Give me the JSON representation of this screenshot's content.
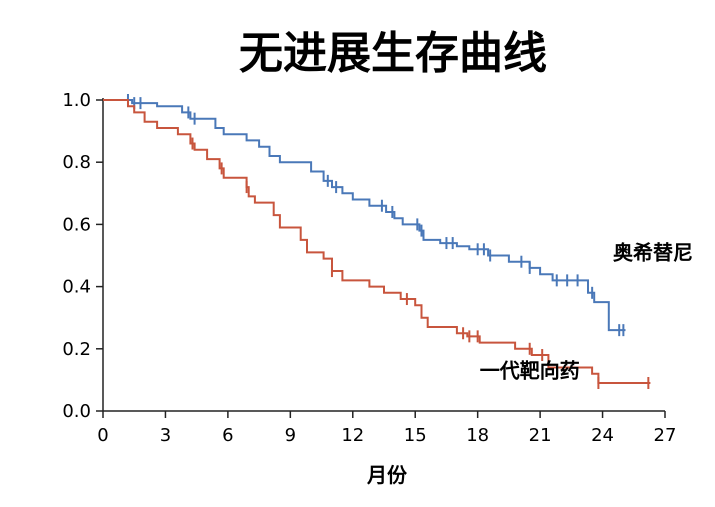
{
  "chart_data": {
    "type": "line",
    "title": "无进展生存曲线",
    "xlabel": "月份",
    "ylabel": "",
    "xlim": [
      0,
      27
    ],
    "ylim": [
      0,
      1
    ],
    "xticks": [
      "0",
      "3",
      "6",
      "9",
      "12",
      "15",
      "18",
      "21",
      "24",
      "27"
    ],
    "yticks": [
      "0.0",
      "0.2",
      "0.4",
      "0.6",
      "0.8",
      "1.0"
    ],
    "grid": false,
    "legend": "inline",
    "series": [
      {
        "name": "奥希替尼",
        "color": "#4a78b8",
        "points": [
          [
            0,
            1.0
          ],
          [
            1.4,
            1.0
          ],
          [
            1.4,
            0.99
          ],
          [
            2.6,
            0.99
          ],
          [
            2.6,
            0.98
          ],
          [
            3.8,
            0.98
          ],
          [
            3.8,
            0.96
          ],
          [
            4.2,
            0.96
          ],
          [
            4.2,
            0.94
          ],
          [
            5.4,
            0.94
          ],
          [
            5.4,
            0.91
          ],
          [
            5.8,
            0.91
          ],
          [
            5.8,
            0.89
          ],
          [
            6.9,
            0.89
          ],
          [
            6.9,
            0.87
          ],
          [
            7.5,
            0.87
          ],
          [
            7.5,
            0.85
          ],
          [
            8,
            0.85
          ],
          [
            8,
            0.82
          ],
          [
            8.5,
            0.82
          ],
          [
            8.5,
            0.8
          ],
          [
            10,
            0.8
          ],
          [
            10,
            0.77
          ],
          [
            10.6,
            0.77
          ],
          [
            10.6,
            0.74
          ],
          [
            11,
            0.74
          ],
          [
            11,
            0.72
          ],
          [
            11.5,
            0.72
          ],
          [
            11.5,
            0.7
          ],
          [
            12,
            0.7
          ],
          [
            12,
            0.68
          ],
          [
            12.8,
            0.68
          ],
          [
            12.8,
            0.66
          ],
          [
            13.6,
            0.66
          ],
          [
            13.6,
            0.64
          ],
          [
            14,
            0.64
          ],
          [
            14,
            0.62
          ],
          [
            14.4,
            0.62
          ],
          [
            14.4,
            0.6
          ],
          [
            15.2,
            0.6
          ],
          [
            15.2,
            0.58
          ],
          [
            15.4,
            0.58
          ],
          [
            15.4,
            0.55
          ],
          [
            16.2,
            0.55
          ],
          [
            16.2,
            0.54
          ],
          [
            17,
            0.54
          ],
          [
            17,
            0.53
          ],
          [
            17.6,
            0.53
          ],
          [
            17.6,
            0.52
          ],
          [
            18.5,
            0.52
          ],
          [
            18.5,
            0.5
          ],
          [
            19.5,
            0.5
          ],
          [
            19.5,
            0.48
          ],
          [
            20.5,
            0.48
          ],
          [
            20.5,
            0.46
          ],
          [
            21,
            0.46
          ],
          [
            21,
            0.44
          ],
          [
            21.6,
            0.44
          ],
          [
            21.6,
            0.42
          ],
          [
            23.3,
            0.42
          ],
          [
            23.3,
            0.38
          ],
          [
            23.6,
            0.38
          ],
          [
            23.6,
            0.35
          ],
          [
            24.3,
            0.35
          ],
          [
            24.3,
            0.26
          ],
          [
            25.1,
            0.26
          ]
        ],
        "censor_x": [
          1.2,
          1.5,
          1.8,
          4.1,
          4.4,
          10.8,
          11.2,
          13.4,
          13.9,
          15.1,
          15.3,
          16.5,
          16.8,
          18,
          18.3,
          18.6,
          20.1,
          20.5,
          21.8,
          22.3,
          22.8,
          23.5,
          24.8,
          25
        ]
      },
      {
        "name": "一代靶向药",
        "color": "#c8553d",
        "points": [
          [
            0,
            1.0
          ],
          [
            1.2,
            1.0
          ],
          [
            1.2,
            0.98
          ],
          [
            1.5,
            0.98
          ],
          [
            1.5,
            0.96
          ],
          [
            2,
            0.96
          ],
          [
            2,
            0.93
          ],
          [
            2.6,
            0.93
          ],
          [
            2.6,
            0.91
          ],
          [
            3.6,
            0.91
          ],
          [
            3.6,
            0.89
          ],
          [
            4.2,
            0.89
          ],
          [
            4.2,
            0.86
          ],
          [
            4.4,
            0.86
          ],
          [
            4.4,
            0.84
          ],
          [
            5,
            0.84
          ],
          [
            5,
            0.81
          ],
          [
            5.6,
            0.81
          ],
          [
            5.6,
            0.78
          ],
          [
            5.8,
            0.78
          ],
          [
            5.8,
            0.75
          ],
          [
            6.9,
            0.75
          ],
          [
            6.9,
            0.72
          ],
          [
            7,
            0.72
          ],
          [
            7,
            0.69
          ],
          [
            7.3,
            0.69
          ],
          [
            7.3,
            0.67
          ],
          [
            8.2,
            0.67
          ],
          [
            8.2,
            0.63
          ],
          [
            8.5,
            0.63
          ],
          [
            8.5,
            0.59
          ],
          [
            9.5,
            0.59
          ],
          [
            9.5,
            0.55
          ],
          [
            9.8,
            0.55
          ],
          [
            9.8,
            0.51
          ],
          [
            10.6,
            0.51
          ],
          [
            10.6,
            0.49
          ],
          [
            11,
            0.49
          ],
          [
            11,
            0.45
          ],
          [
            11.5,
            0.45
          ],
          [
            11.5,
            0.42
          ],
          [
            12.8,
            0.42
          ],
          [
            12.8,
            0.4
          ],
          [
            13.5,
            0.4
          ],
          [
            13.5,
            0.38
          ],
          [
            14.3,
            0.38
          ],
          [
            14.3,
            0.36
          ],
          [
            15,
            0.36
          ],
          [
            15,
            0.34
          ],
          [
            15.3,
            0.34
          ],
          [
            15.3,
            0.3
          ],
          [
            15.6,
            0.3
          ],
          [
            15.6,
            0.27
          ],
          [
            17,
            0.27
          ],
          [
            17,
            0.25
          ],
          [
            17.5,
            0.25
          ],
          [
            17.5,
            0.24
          ],
          [
            18.1,
            0.24
          ],
          [
            18.1,
            0.22
          ],
          [
            19.8,
            0.22
          ],
          [
            19.8,
            0.2
          ],
          [
            20.6,
            0.2
          ],
          [
            20.6,
            0.18
          ],
          [
            21.4,
            0.18
          ],
          [
            21.4,
            0.14
          ],
          [
            23.5,
            0.14
          ],
          [
            23.5,
            0.12
          ],
          [
            23.8,
            0.12
          ],
          [
            23.8,
            0.09
          ],
          [
            26.3,
            0.09
          ]
        ],
        "censor_x": [
          4.3,
          5.7,
          6.9,
          11,
          14.6,
          17.3,
          17.6,
          18,
          20.5,
          21.1,
          23.8,
          26.2
        ]
      }
    ],
    "annotations": [
      {
        "text": "奥希替尼",
        "x": 24.5,
        "y": 0.51
      },
      {
        "text": "一代靶向药",
        "x": 18.1,
        "y": 0.13
      }
    ]
  }
}
